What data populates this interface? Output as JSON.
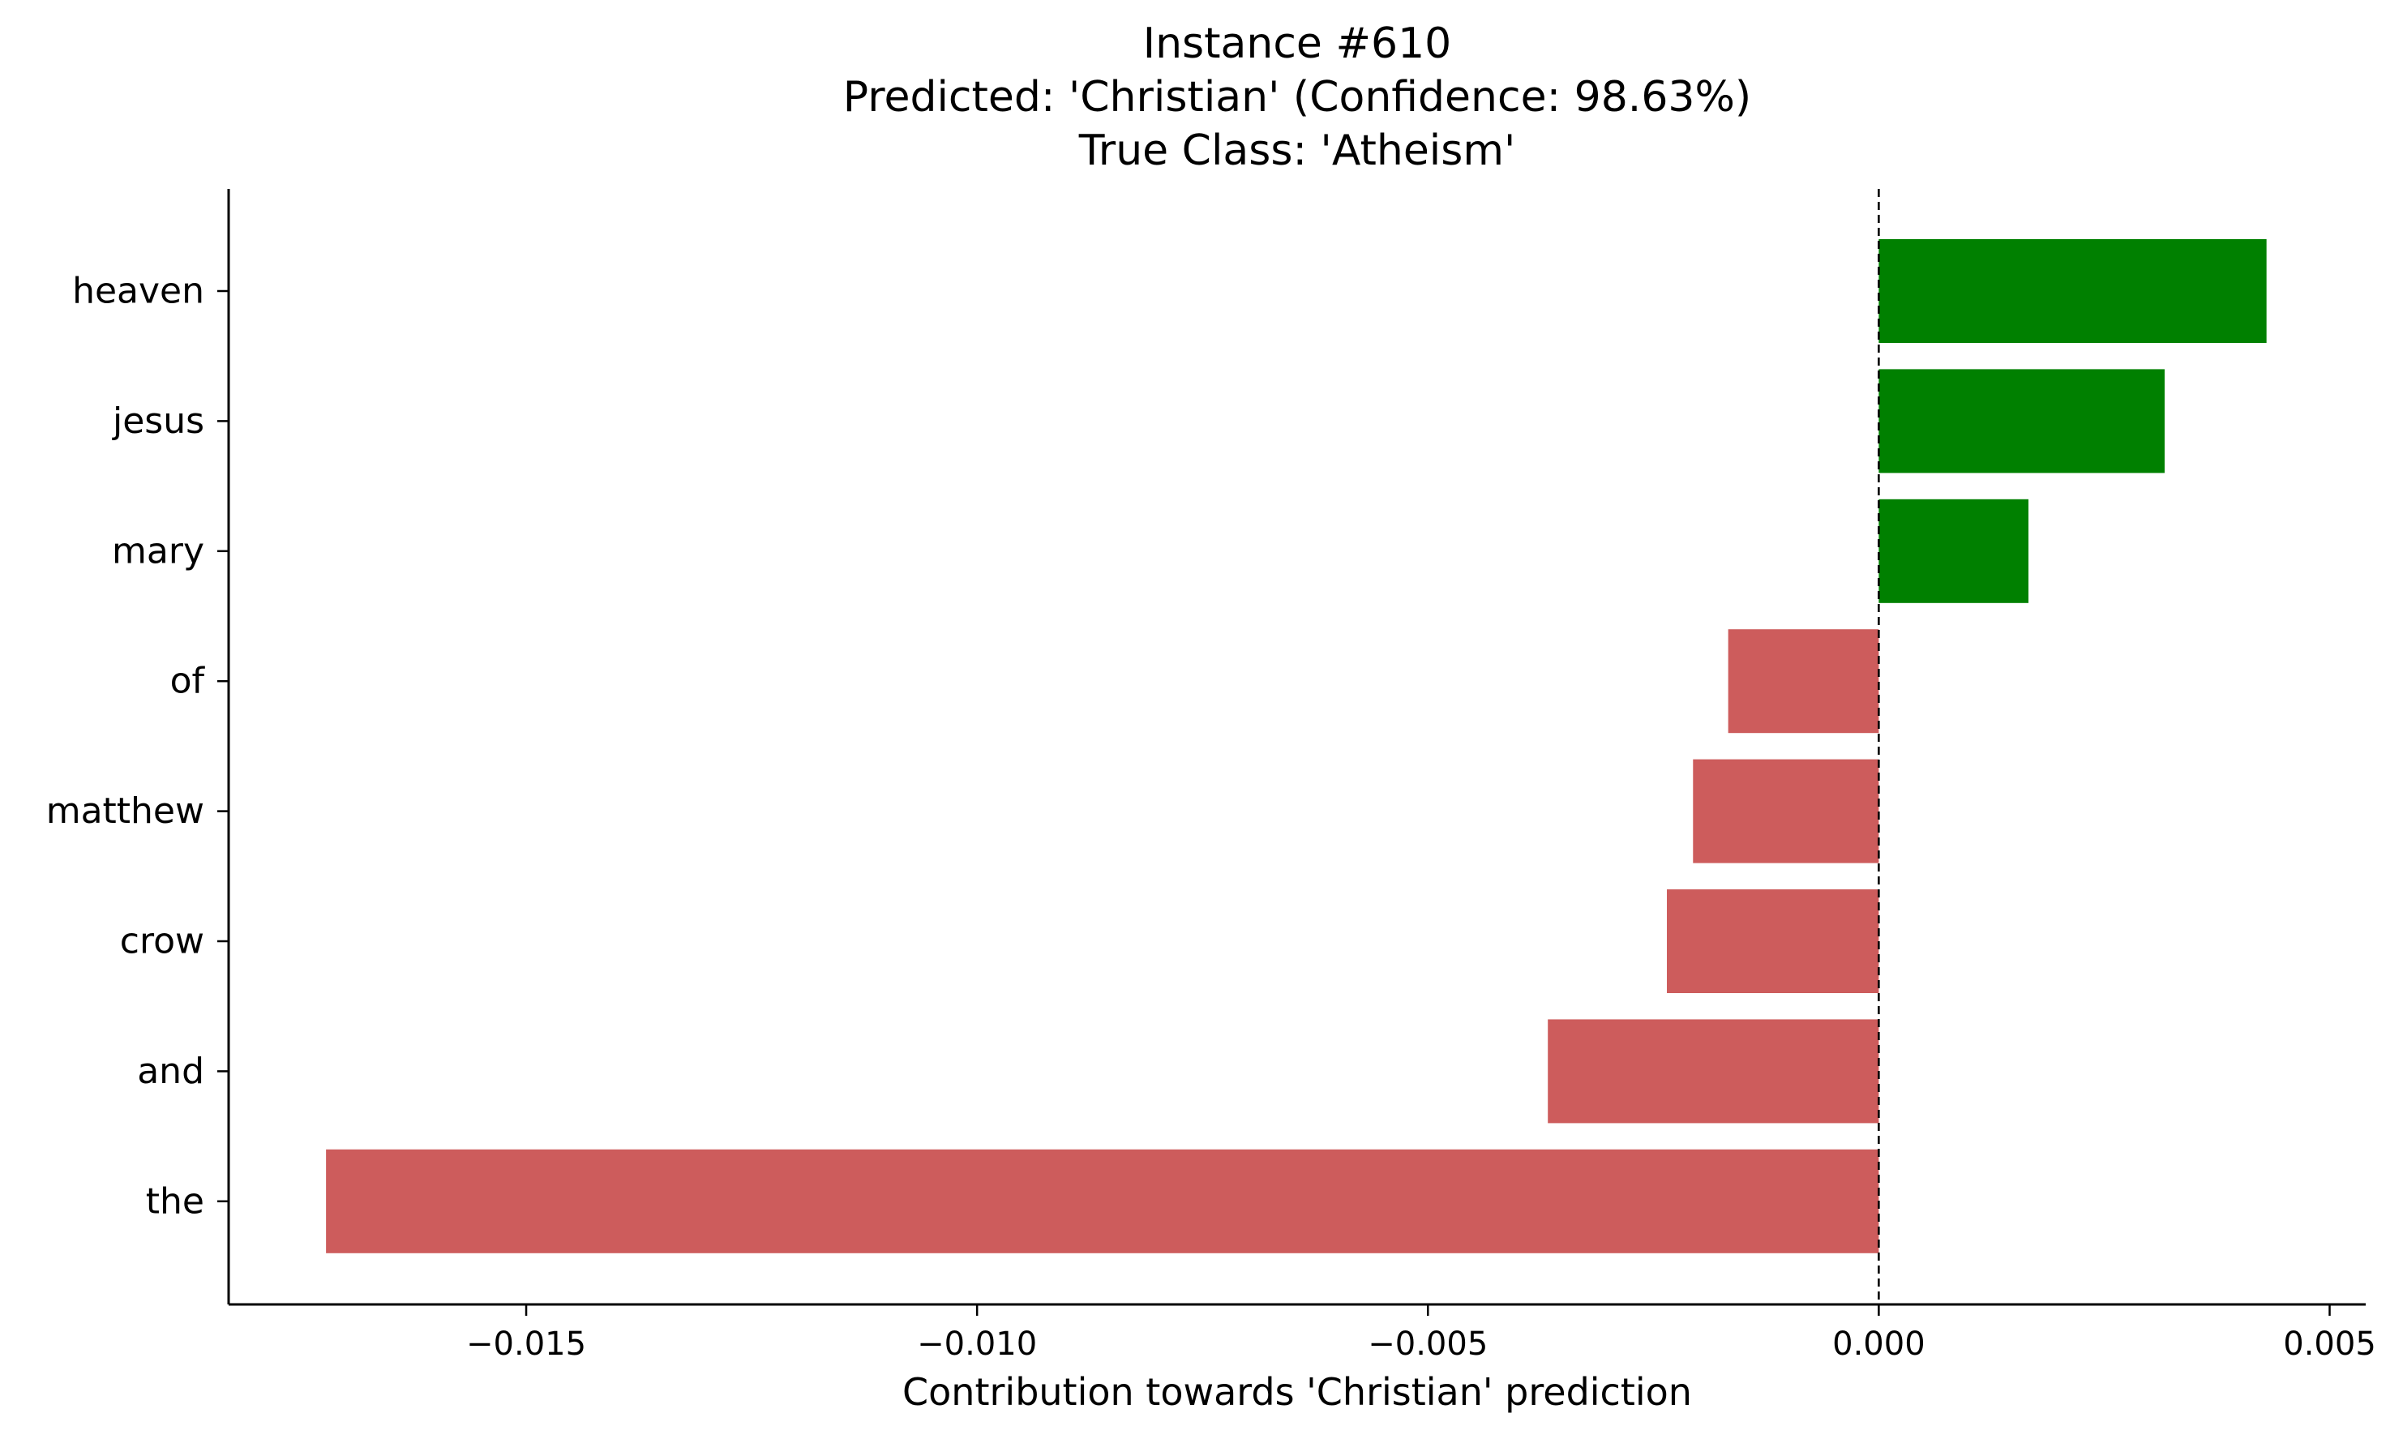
{
  "chart_data": {
    "type": "bar",
    "orientation": "horizontal",
    "title_lines": [
      "Instance #610",
      "Predicted: 'Christian' (Confidence: 98.63%)",
      "True Class: 'Atheism'"
    ],
    "xlabel": "Contribution towards 'Christian' prediction",
    "ylabel": "",
    "categories": [
      "heaven",
      "jesus",
      "mary",
      "of",
      "matthew",
      "crow",
      "and",
      "the"
    ],
    "values": [
      0.0043,
      0.00317,
      0.00166,
      -0.00167,
      -0.00206,
      -0.00235,
      -0.00367,
      -0.01722
    ],
    "xlim": [
      -0.0183,
      0.0054
    ],
    "xticks": [
      -0.015,
      -0.01,
      -0.005,
      0.0,
      0.005
    ],
    "xtick_labels": [
      "−0.015",
      "−0.010",
      "−0.005",
      "0.000",
      "0.005"
    ],
    "grid": false,
    "legend": "none",
    "reference_line": {
      "x": 0,
      "style": "dashed"
    },
    "colors": {
      "positive": "#008000",
      "negative": "#cd5c5c",
      "axis": "#000000"
    }
  }
}
